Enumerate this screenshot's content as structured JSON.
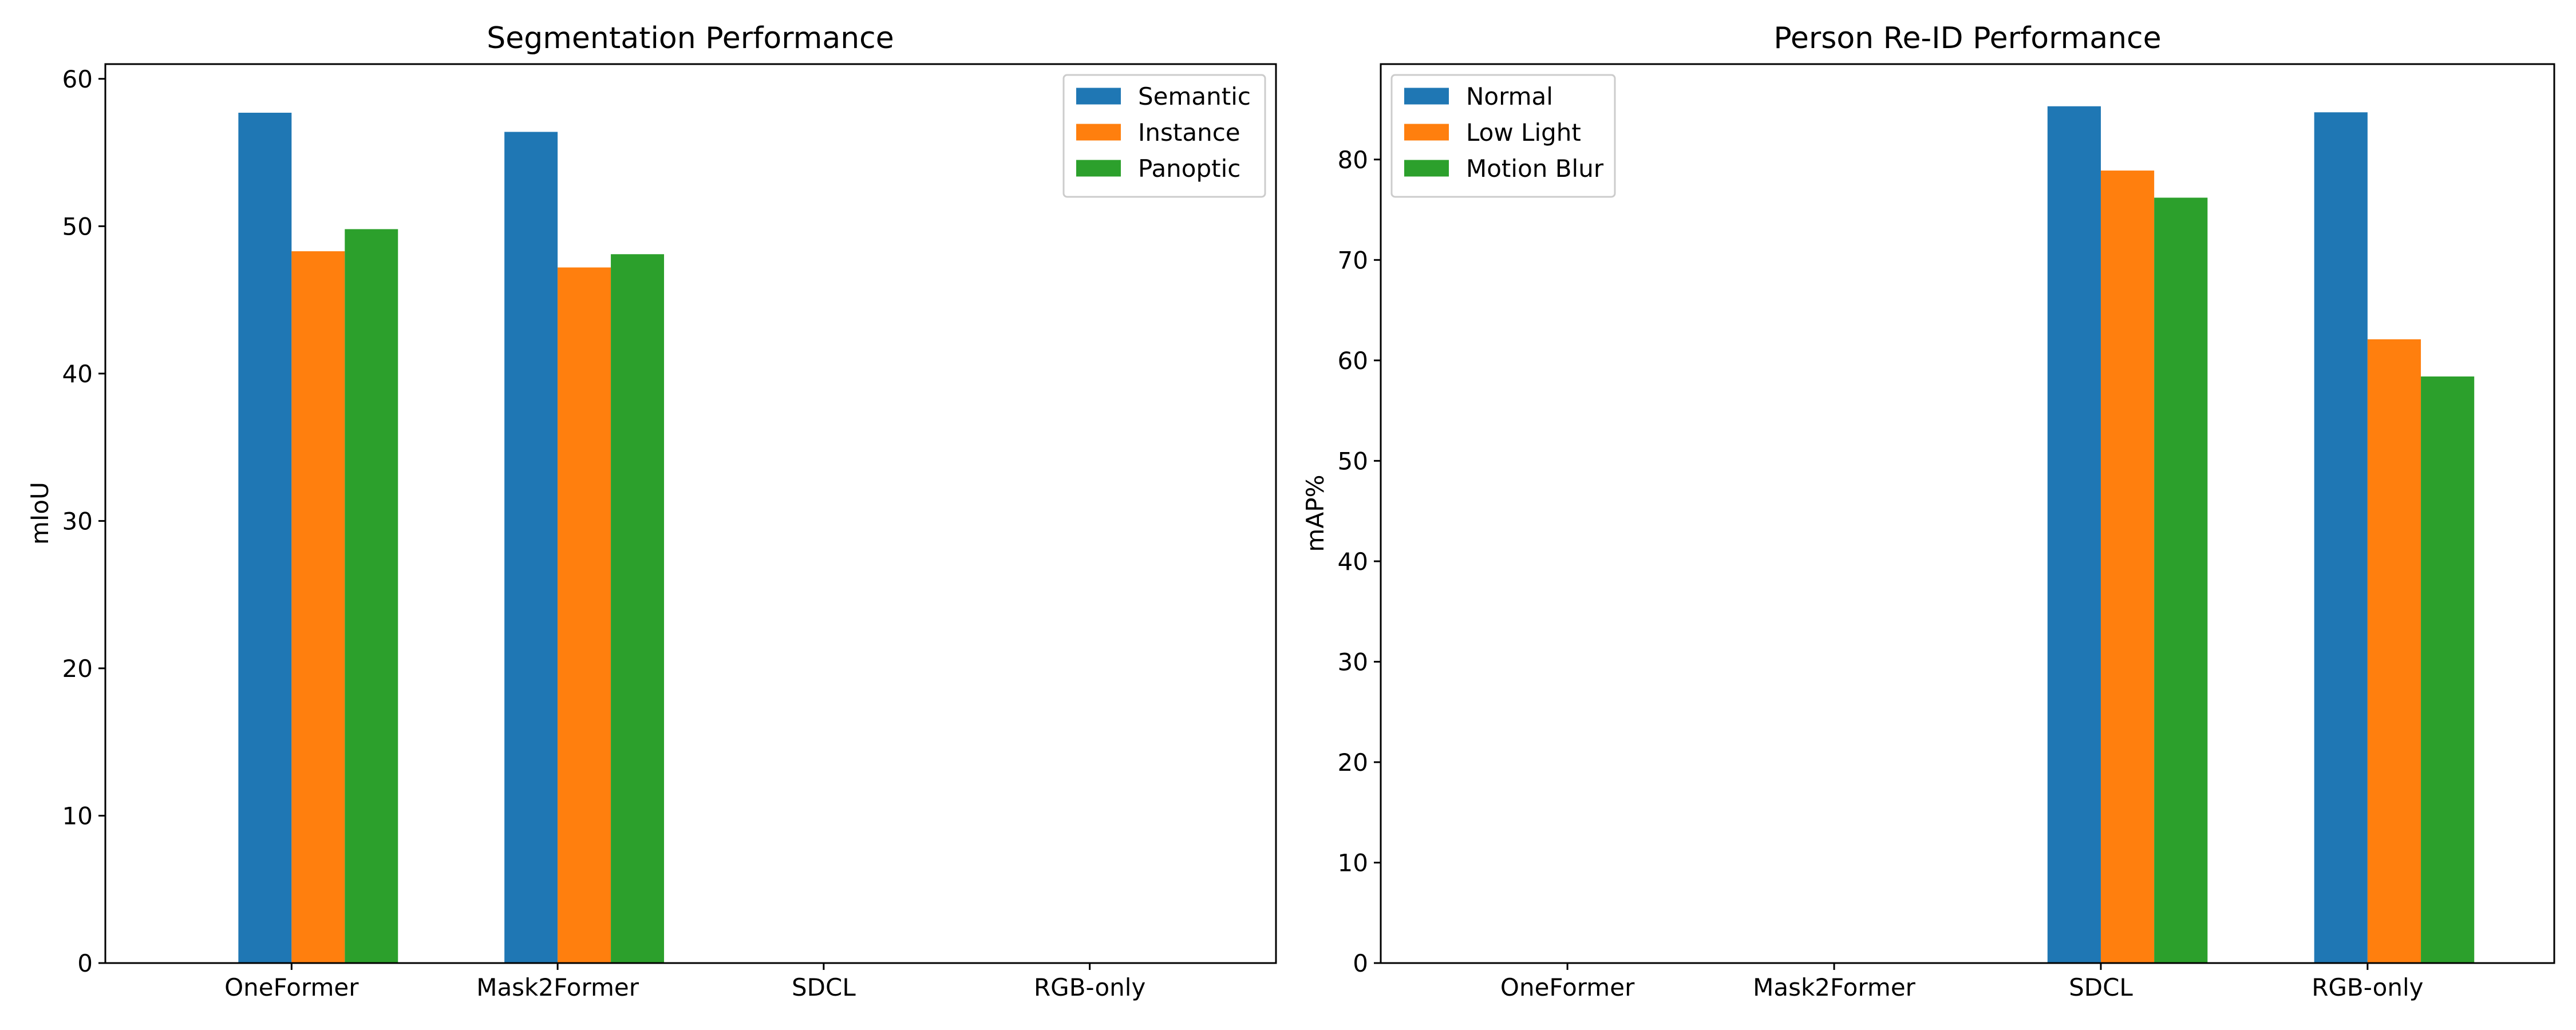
{
  "chart_data": [
    {
      "type": "bar",
      "title": "Segmentation Performance",
      "xlabel": "",
      "ylabel": "mIoU",
      "categories": [
        "OneFormer",
        "Mask2Former",
        "SDCL",
        "RGB-only"
      ],
      "ylim": [
        0,
        61
      ],
      "yticks": [
        0,
        10,
        20,
        30,
        40,
        50,
        60
      ],
      "legend_position": "top-right",
      "series": [
        {
          "name": "Semantic",
          "color": "#1f77b4",
          "values": [
            57.7,
            56.4,
            null,
            null
          ]
        },
        {
          "name": "Instance",
          "color": "#ff7f0e",
          "values": [
            48.3,
            47.2,
            null,
            null
          ]
        },
        {
          "name": "Panoptic",
          "color": "#2ca02c",
          "values": [
            49.8,
            48.1,
            null,
            null
          ]
        }
      ]
    },
    {
      "type": "bar",
      "title": "Person Re-ID Performance",
      "xlabel": "",
      "ylabel": "mAP%",
      "categories": [
        "OneFormer",
        "Mask2Former",
        "SDCL",
        "RGB-only"
      ],
      "ylim": [
        0,
        89.5
      ],
      "yticks": [
        0,
        10,
        20,
        30,
        40,
        50,
        60,
        70,
        80
      ],
      "legend_position": "top-left",
      "series": [
        {
          "name": "Normal",
          "color": "#1f77b4",
          "values": [
            null,
            null,
            85.3,
            84.7
          ]
        },
        {
          "name": "Low Light",
          "color": "#ff7f0e",
          "values": [
            null,
            null,
            78.9,
            62.1
          ]
        },
        {
          "name": "Motion Blur",
          "color": "#2ca02c",
          "values": [
            null,
            null,
            76.2,
            58.4
          ]
        }
      ]
    }
  ]
}
